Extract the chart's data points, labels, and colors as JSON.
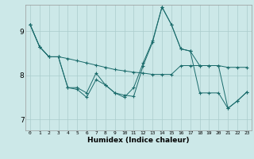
{
  "xlabel": "Humidex (Indice chaleur)",
  "bg_color": "#cce8e8",
  "grid_color": "#aacccc",
  "line_color": "#1a6b6b",
  "xlim": [
    -0.5,
    23.5
  ],
  "ylim": [
    6.75,
    9.6
  ],
  "yticks": [
    7,
    8,
    9
  ],
  "xticks": [
    0,
    1,
    2,
    3,
    4,
    5,
    6,
    7,
    8,
    9,
    10,
    11,
    12,
    13,
    14,
    15,
    16,
    17,
    18,
    19,
    20,
    21,
    22,
    23
  ],
  "series": [
    [
      9.15,
      8.65,
      8.42,
      8.42,
      8.38,
      8.33,
      8.28,
      8.23,
      8.18,
      8.13,
      8.1,
      8.07,
      8.05,
      8.02,
      8.02,
      8.02,
      8.22,
      8.22,
      8.22,
      8.22,
      8.22,
      8.18,
      8.18,
      8.18
    ],
    [
      9.15,
      8.65,
      8.42,
      8.42,
      7.72,
      7.72,
      7.6,
      8.05,
      7.78,
      7.6,
      7.55,
      7.52,
      8.22,
      8.75,
      9.55,
      9.15,
      8.6,
      8.55,
      8.22,
      8.22,
      8.22,
      7.25,
      7.42,
      7.62
    ],
    [
      9.15,
      8.65,
      8.42,
      8.42,
      7.72,
      7.68,
      7.5,
      7.9,
      7.78,
      7.6,
      7.5,
      7.72,
      8.28,
      8.78,
      9.55,
      9.15,
      8.6,
      8.55,
      7.6,
      7.6,
      7.6,
      7.25,
      7.42,
      7.62
    ]
  ]
}
